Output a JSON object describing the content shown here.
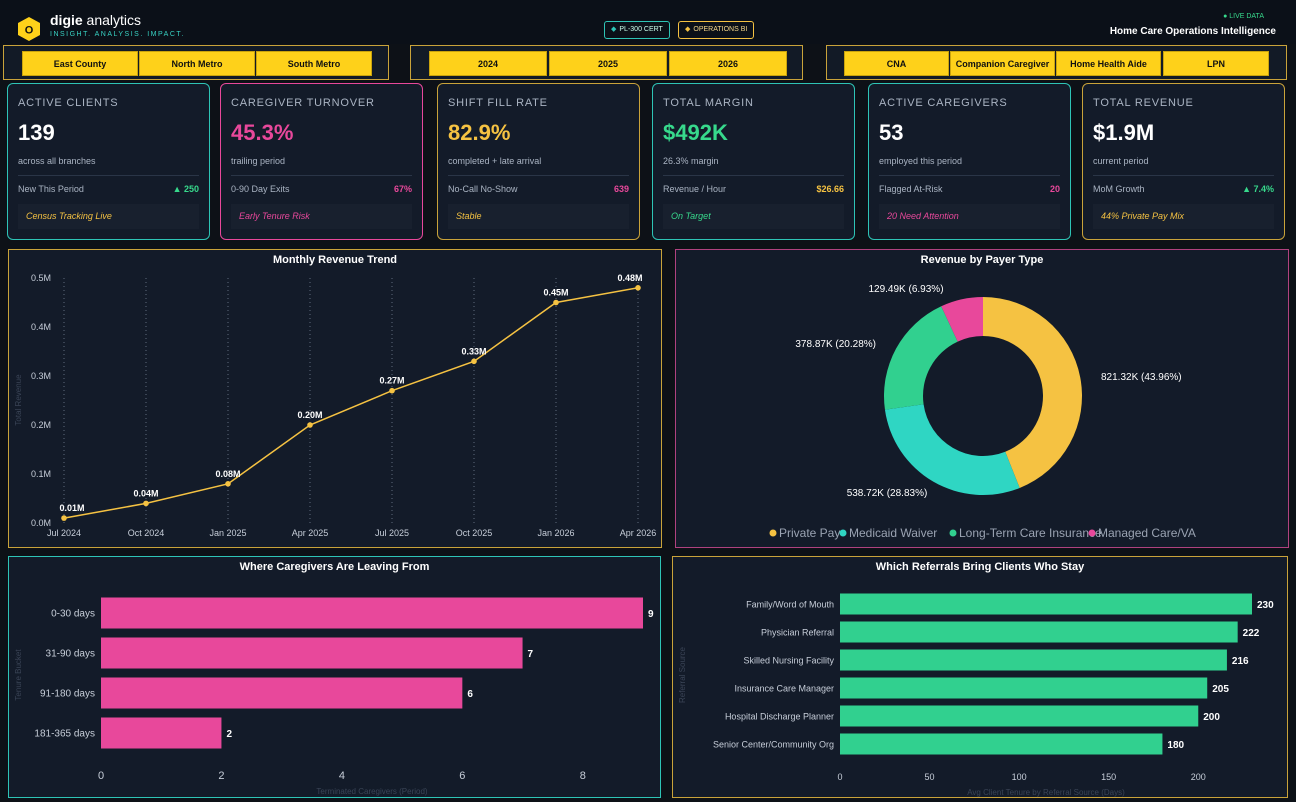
{
  "header": {
    "brand_letter": "O",
    "brand_bold": "digie",
    "brand_thin": " analytics",
    "tagline": "INSIGHT. ANALYSIS. IMPACT.",
    "badge_cert": "PL-300 CERT",
    "badge_ops": "OPERATIONS BI",
    "live": "● LIVE DATA",
    "title": "Home Care Operations Intelligence",
    "colors": {
      "accent": "#fed11a",
      "teal": "#2ec4b6",
      "pink": "#e8489b",
      "green": "#37d98c"
    }
  },
  "slicers": {
    "region": [
      "East County",
      "North Metro",
      "South Metro"
    ],
    "year": [
      "2024",
      "2025",
      "2026"
    ],
    "role": [
      "CNA",
      "Companion Caregiver",
      "Home Health Aide",
      "LPN"
    ]
  },
  "kpis": [
    {
      "title": "ACTIVE CLIENTS",
      "value": "139",
      "sub": "across all branches",
      "metric_label": "New This Period",
      "metric_value": "▲ 250",
      "note": "Census Tracking Live",
      "value_color": "#ffffff",
      "metric_color": "#37d98c",
      "note_color": "#f5c242",
      "border": "#2ec4b6"
    },
    {
      "title": "CAREGIVER TURNOVER",
      "value": "45.3%",
      "sub": "trailing period",
      "metric_label": "0-90 Day Exits",
      "metric_value": "67%",
      "note": "Early Tenure Risk",
      "value_color": "#e8489b",
      "metric_color": "#e8489b",
      "note_color": "#e8489b",
      "border": "#e8489b"
    },
    {
      "title": "SHIFT FILL RATE",
      "value": "82.9%",
      "sub": "completed + late arrival",
      "metric_label": "No-Call No-Show",
      "metric_value": "639",
      "note": "Stable",
      "value_color": "#f5c242",
      "metric_color": "#e8489b",
      "note_color": "#f5c242",
      "border": "#c9a33a"
    },
    {
      "title": "TOTAL MARGIN",
      "value": "$492K",
      "sub": "26.3% margin",
      "metric_label": "Revenue / Hour",
      "metric_value": "$26.66",
      "note": "On Target",
      "value_color": "#37d98c",
      "metric_color": "#f5c242",
      "note_color": "#37d98c",
      "border": "#2ec4b6"
    },
    {
      "title": "ACTIVE CAREGIVERS",
      "value": "53",
      "sub": "employed this period",
      "metric_label": "Flagged At-Risk",
      "metric_value": "20",
      "note": "20 Need Attention",
      "value_color": "#ffffff",
      "metric_color": "#e8489b",
      "note_color": "#e8489b",
      "border": "#2ec4b6"
    },
    {
      "title": "TOTAL REVENUE",
      "value": "$1.9M",
      "sub": "current period",
      "metric_label": "MoM Growth",
      "metric_value": "▲ 7.4%",
      "note": "44% Private Pay Mix",
      "value_color": "#ffffff",
      "metric_color": "#37d98c",
      "note_color": "#f5c242",
      "border": "#c9a33a"
    }
  ],
  "chart_data": [
    {
      "type": "line",
      "title": "Monthly Revenue Trend",
      "ylabel": "Total Revenue",
      "x": [
        "Jul 2024",
        "Oct 2024",
        "Jan 2025",
        "Apr 2025",
        "Jul 2025",
        "Oct 2025",
        "Jan 2026",
        "Apr 2026"
      ],
      "values": [
        0.01,
        0.04,
        0.08,
        0.2,
        0.27,
        0.33,
        0.45,
        0.48
      ],
      "data_labels": [
        "0.01M",
        "0.04M",
        "0.08M",
        "0.20M",
        "0.27M",
        "0.33M",
        "0.45M",
        "0.48M"
      ],
      "yticks": [
        "0.0M",
        "0.1M",
        "0.2M",
        "0.3M",
        "0.4M",
        "0.5M"
      ],
      "ylim": [
        0,
        0.5
      ],
      "grid": "vertical dotted",
      "color": "#f5c242"
    },
    {
      "type": "pie",
      "title": "Revenue by Payer Type",
      "labels": [
        "Private Pay",
        "Medicaid Waiver",
        "Long-Term Care Insurance",
        "Managed Care/VA"
      ],
      "values": [
        821.32,
        538.72,
        378.87,
        129.49
      ],
      "data_labels": [
        "821.32K (43.96%)",
        "538.72K (28.83%)",
        "378.87K (20.28%)",
        "129.49K (6.93%)"
      ],
      "colors": [
        "#f5c242",
        "#2fd6c3",
        "#31d08f",
        "#e8489b"
      ],
      "legend": "bottom"
    },
    {
      "type": "bar",
      "orientation": "horizontal",
      "title": "Where Caregivers Are Leaving From",
      "ylabel": "Tenure Bucket",
      "xlabel": "Terminated Caregivers (Period)",
      "categories": [
        "0-30 days",
        "31-90 days",
        "91-180 days",
        "181-365 days"
      ],
      "values": [
        9,
        7,
        6,
        2
      ],
      "xticks": [
        0,
        2,
        4,
        6,
        8
      ],
      "xlim": [
        0,
        9
      ],
      "color": "#e8489b"
    },
    {
      "type": "bar",
      "orientation": "horizontal",
      "title": "Which Referrals Bring Clients Who Stay",
      "ylabel": "Referral Source",
      "xlabel": "Avg Client Tenure by Referral Source (Days)",
      "categories": [
        "Family/Word of Mouth",
        "Physician Referral",
        "Skilled Nursing Facility",
        "Insurance Care Manager",
        "Hospital Discharge Planner",
        "Senior Center/Community Org"
      ],
      "values": [
        230,
        222,
        216,
        205,
        200,
        180
      ],
      "xticks": [
        0,
        50,
        100,
        150,
        200
      ],
      "xlim": [
        0,
        230
      ],
      "color": "#31d08f"
    }
  ]
}
